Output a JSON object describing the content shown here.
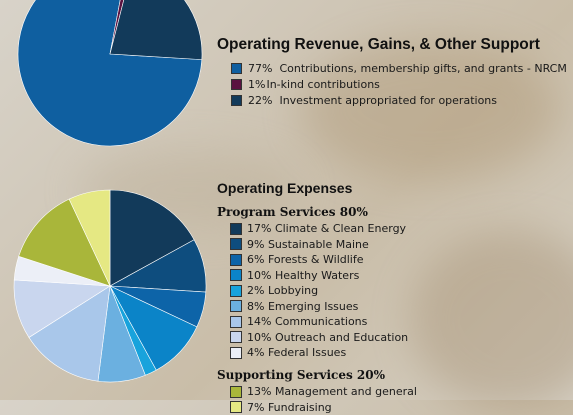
{
  "chart_data": [
    {
      "type": "pie",
      "title": "Operating Revenue, Gains, & Other Support",
      "slices": [
        {
          "percent_label": "77%",
          "label": "Contributions, membership gifts, and grants - NRCM",
          "value": 77,
          "color": "#0f5fa0"
        },
        {
          "percent_label": "1%",
          "label": "In-kind contributions",
          "value": 1,
          "color": "#5a1240"
        },
        {
          "percent_label": "22%",
          "label": "Investment appropriated for operations",
          "value": 22,
          "color": "#123a5a"
        }
      ]
    },
    {
      "type": "pie",
      "title": "Operating Expenses",
      "groups": [
        {
          "heading": "Program Services 80%",
          "slices": [
            {
              "label": "17% Climate & Clean Energy",
              "value": 17,
              "color": "#123a5a"
            },
            {
              "label": "9% Sustainable Maine",
              "value": 9,
              "color": "#0e4d7e"
            },
            {
              "label": "6% Forests & Wildlife",
              "value": 6,
              "color": "#0d64a8"
            },
            {
              "label": "10% Healthy Waters",
              "value": 10,
              "color": "#0b84c8"
            },
            {
              "label": "2% Lobbying",
              "value": 2,
              "color": "#18a3dc"
            },
            {
              "label": "8% Emerging Issues",
              "value": 8,
              "color": "#6bb0e0"
            },
            {
              "label": "14% Communications",
              "value": 14,
              "color": "#a9c7ea"
            },
            {
              "label": "10% Outreach and Education",
              "value": 10,
              "color": "#c9d6ee"
            },
            {
              "label": "4% Federal Issues",
              "value": 4,
              "color": "#eceff7"
            }
          ]
        },
        {
          "heading": "Supporting Services 20%",
          "slices": [
            {
              "label": "13% Management and general",
              "value": 13,
              "color": "#a9b63a"
            },
            {
              "label": "7% Fundraising",
              "value": 7,
              "color": "#e5e883"
            }
          ]
        }
      ]
    }
  ]
}
